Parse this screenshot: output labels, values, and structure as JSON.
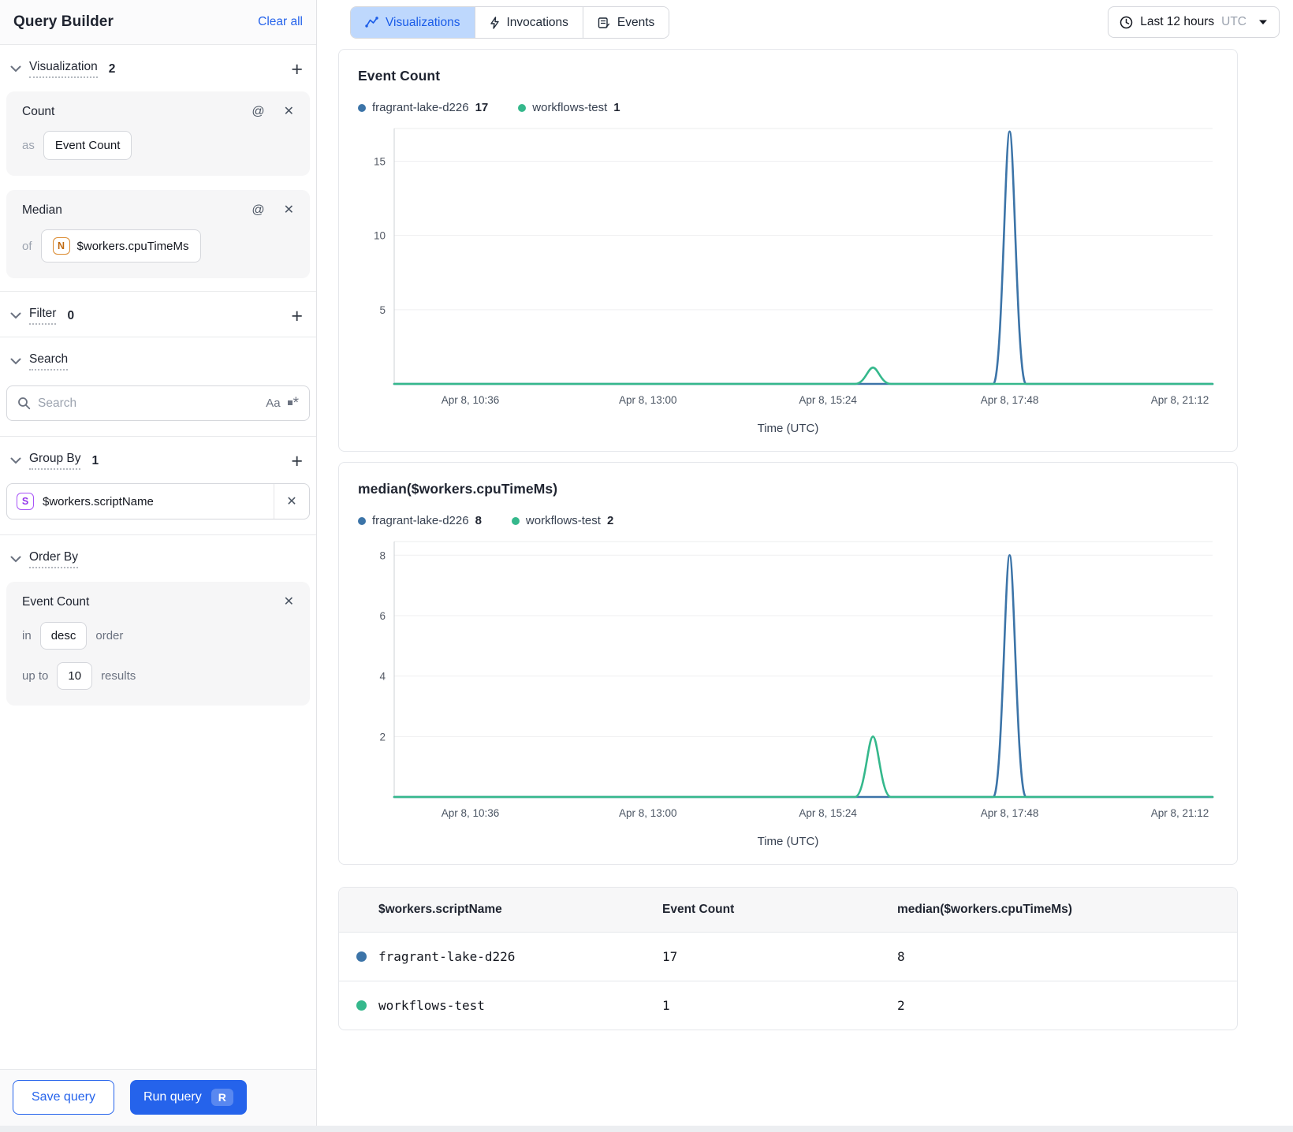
{
  "sidebar": {
    "title": "Query Builder",
    "clear_all": "Clear all",
    "visualization_section": {
      "label": "Visualization",
      "count": "2"
    },
    "visualizations": [
      {
        "name": "Count",
        "prefix": "as",
        "value": "Event Count"
      },
      {
        "name": "Median",
        "prefix": "of",
        "value": "$workers.cpuTimeMs",
        "value_icon": "N"
      }
    ],
    "filter_section": {
      "label": "Filter",
      "count": "0"
    },
    "search_section": {
      "label": "Search"
    },
    "search": {
      "placeholder": "Search",
      "case_toggle": "Aa"
    },
    "group_by_section": {
      "label": "Group By",
      "count": "1"
    },
    "group_by_items": [
      {
        "icon": "S",
        "value": "$workers.scriptName"
      }
    ],
    "order_by_section": {
      "label": "Order By"
    },
    "order_by": {
      "field": "Event Count",
      "in_label": "in",
      "direction": "desc",
      "order_label": "order",
      "upto_label": "up to",
      "limit": "10",
      "results_label": "results"
    },
    "footer": {
      "save": "Save query",
      "run": "Run query",
      "run_shortcut": "R"
    }
  },
  "topbar": {
    "tabs": [
      {
        "label": "Visualizations",
        "active": true
      },
      {
        "label": "Invocations",
        "active": false
      },
      {
        "label": "Events",
        "active": false
      }
    ],
    "time_range": {
      "label": "Last 12 hours",
      "zone": "UTC"
    }
  },
  "chart_data": [
    {
      "type": "line",
      "title": "Event Count",
      "xlabel": "Time (UTC)",
      "ylim": [
        0,
        17.2
      ],
      "y_ticks": [
        5,
        10,
        15
      ],
      "grid": true,
      "legend_position": "top",
      "x_ticks": [
        {
          "label": "Apr 8, 10:36",
          "pos": 0.093
        },
        {
          "label": "Apr 8, 13:00",
          "pos": 0.31
        },
        {
          "label": "Apr 8, 15:24",
          "pos": 0.53
        },
        {
          "label": "Apr 8, 17:48",
          "pos": 0.752
        },
        {
          "label": "Apr 8, 21:12",
          "pos": 0.96
        }
      ],
      "legend": [
        {
          "name": "fragrant-lake-d226",
          "value": "17",
          "color": "#3C74A8"
        },
        {
          "name": "workflows-test",
          "value": "1",
          "color": "#35B88C"
        }
      ],
      "series": [
        {
          "name": "fragrant-lake-d226",
          "color": "#3C74A8",
          "baseline": 0,
          "spikes": [
            {
              "pos": 0.752,
              "halfWidth": 0.02,
              "peak": 17,
              "peak_time": "Apr 8, 17:48"
            }
          ]
        },
        {
          "name": "workflows-test",
          "color": "#35B88C",
          "baseline": 0,
          "spikes": [
            {
              "pos": 0.585,
              "halfWidth": 0.022,
              "peak": 1.1,
              "peak_time": "Apr 8, 15:45 (approx)"
            }
          ]
        }
      ]
    },
    {
      "type": "line",
      "title": "median($workers.cpuTimeMs)",
      "xlabel": "Time (UTC)",
      "ylim": [
        0,
        8.45
      ],
      "y_ticks": [
        2,
        4,
        6,
        8
      ],
      "grid": true,
      "legend_position": "top",
      "x_ticks": [
        {
          "label": "Apr 8, 10:36",
          "pos": 0.093
        },
        {
          "label": "Apr 8, 13:00",
          "pos": 0.31
        },
        {
          "label": "Apr 8, 15:24",
          "pos": 0.53
        },
        {
          "label": "Apr 8, 17:48",
          "pos": 0.752
        },
        {
          "label": "Apr 8, 21:12",
          "pos": 0.96
        }
      ],
      "legend": [
        {
          "name": "fragrant-lake-d226",
          "value": "8",
          "color": "#3C74A8"
        },
        {
          "name": "workflows-test",
          "value": "2",
          "color": "#35B88C"
        }
      ],
      "series": [
        {
          "name": "fragrant-lake-d226",
          "color": "#3C74A8",
          "baseline": 0,
          "spikes": [
            {
              "pos": 0.752,
              "halfWidth": 0.02,
              "peak": 8,
              "peak_time": "Apr 8, 17:48"
            }
          ]
        },
        {
          "name": "workflows-test",
          "color": "#35B88C",
          "baseline": 0,
          "spikes": [
            {
              "pos": 0.585,
              "halfWidth": 0.022,
              "peak": 2,
              "peak_time": "Apr 8, 15:45 (approx)"
            }
          ]
        }
      ]
    }
  ],
  "results_table": {
    "columns": [
      "$workers.scriptName",
      "Event Count",
      "median($workers.cpuTimeMs)"
    ],
    "rows": [
      {
        "color": "#3C74A8",
        "name": "fragrant-lake-d226",
        "event_count": "17",
        "median": "8"
      },
      {
        "color": "#35B88C",
        "name": "workflows-test",
        "event_count": "1",
        "median": "2"
      }
    ]
  },
  "colors": {
    "accent_blue": "#2563EB",
    "series_blue": "#3C74A8",
    "series_green": "#35B88C",
    "tab_active_bg": "#BED8FD"
  }
}
